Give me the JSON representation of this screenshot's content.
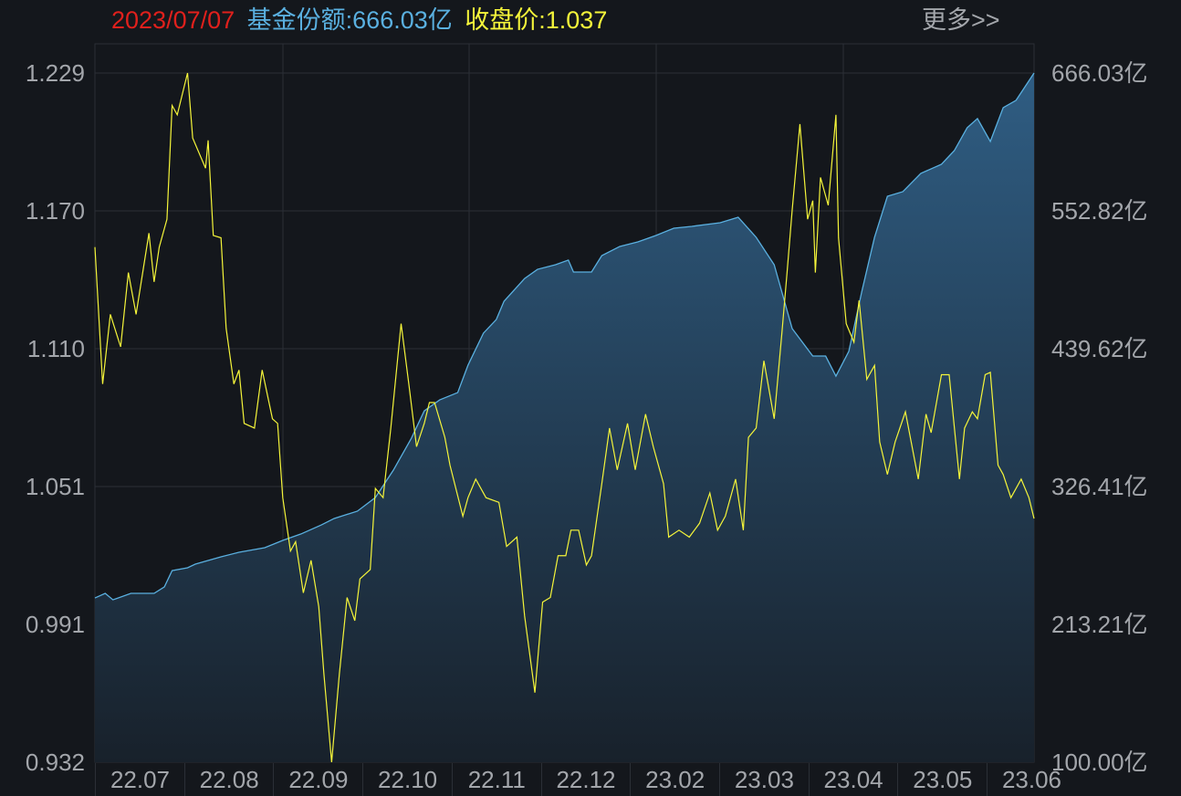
{
  "header": {
    "date": "2023/07/07",
    "fund_size_label": "基金份额:666.03亿",
    "close_label": "收盘价:1.037",
    "more_label": "更多>>"
  },
  "colors": {
    "background": "#14171c",
    "date": "#e0201c",
    "fund_size": "#5ab0e0",
    "price": "#f5f53a",
    "grid": "#2b2f36",
    "axis_text": "#a3a6ab"
  },
  "chart_data": {
    "type": "line",
    "x_range": [
      "2022-07-07",
      "2023-07-07"
    ],
    "x_ticks": [
      "22.07",
      "22.08",
      "22.09",
      "22.10",
      "22.11",
      "22.12",
      "23.02",
      "23.03",
      "23.04",
      "23.05",
      "23.06"
    ],
    "y_left": {
      "ticks": [
        "1.229",
        "1.170",
        "1.110",
        "1.051",
        "0.991",
        "0.932"
      ],
      "ylim": [
        0.932,
        1.229
      ]
    },
    "y_right": {
      "ticks": [
        "666.03亿",
        "552.82亿",
        "439.62亿",
        "326.41亿",
        "213.21亿",
        "100.00亿"
      ],
      "ylim": [
        100.0,
        666.03
      ],
      "unit": "亿"
    },
    "grid": true,
    "series": [
      {
        "name": "收盘价",
        "axis": "left",
        "style": "line",
        "points": [
          [
            "2022-07-07",
            1.154
          ],
          [
            "2022-07-10",
            1.095
          ],
          [
            "2022-07-13",
            1.125
          ],
          [
            "2022-07-17",
            1.111
          ],
          [
            "2022-07-20",
            1.143
          ],
          [
            "2022-07-23",
            1.125
          ],
          [
            "2022-07-28",
            1.16
          ],
          [
            "2022-07-30",
            1.139
          ],
          [
            "2022-08-01",
            1.154
          ],
          [
            "2022-08-04",
            1.166
          ],
          [
            "2022-08-06",
            1.215
          ],
          [
            "2022-08-08",
            1.211
          ],
          [
            "2022-08-12",
            1.229
          ],
          [
            "2022-08-14",
            1.201
          ],
          [
            "2022-08-19",
            1.188
          ],
          [
            "2022-08-20",
            1.2
          ],
          [
            "2022-08-22",
            1.159
          ],
          [
            "2022-08-25",
            1.158
          ],
          [
            "2022-08-27",
            1.119
          ],
          [
            "2022-08-30",
            1.095
          ],
          [
            "2022-09-01",
            1.101
          ],
          [
            "2022-09-03",
            1.078
          ],
          [
            "2022-09-07",
            1.076
          ],
          [
            "2022-09-10",
            1.101
          ],
          [
            "2022-09-14",
            1.08
          ],
          [
            "2022-09-16",
            1.078
          ],
          [
            "2022-09-18",
            1.046
          ],
          [
            "2022-09-21",
            1.023
          ],
          [
            "2022-09-23",
            1.027
          ],
          [
            "2022-09-26",
            1.005
          ],
          [
            "2022-09-29",
            1.019
          ],
          [
            "2022-10-02",
            0.999
          ],
          [
            "2022-10-04",
            0.97
          ],
          [
            "2022-10-07",
            0.932
          ],
          [
            "2022-10-10",
            0.97
          ],
          [
            "2022-10-13",
            1.003
          ],
          [
            "2022-10-16",
            0.993
          ],
          [
            "2022-10-18",
            1.011
          ],
          [
            "2022-10-22",
            1.015
          ],
          [
            "2022-10-24",
            1.05
          ],
          [
            "2022-10-27",
            1.046
          ],
          [
            "2022-10-30",
            1.076
          ],
          [
            "2022-11-03",
            1.121
          ],
          [
            "2022-11-06",
            1.095
          ],
          [
            "2022-11-09",
            1.068
          ],
          [
            "2022-11-12",
            1.078
          ],
          [
            "2022-11-14",
            1.087
          ],
          [
            "2022-11-16",
            1.087
          ],
          [
            "2022-11-20",
            1.072
          ],
          [
            "2022-11-22",
            1.06
          ],
          [
            "2022-11-27",
            1.038
          ],
          [
            "2022-11-29",
            1.046
          ],
          [
            "2022-12-02",
            1.054
          ],
          [
            "2022-12-06",
            1.046
          ],
          [
            "2022-12-11",
            1.044
          ],
          [
            "2022-12-14",
            1.025
          ],
          [
            "2022-12-18",
            1.029
          ],
          [
            "2022-12-21",
            0.995
          ],
          [
            "2022-12-25",
            0.962
          ],
          [
            "2022-12-28",
            1.001
          ],
          [
            "2022-12-31",
            1.003
          ],
          [
            "2023-01-03",
            1.021
          ],
          [
            "2023-01-06",
            1.021
          ],
          [
            "2023-01-08",
            1.032
          ],
          [
            "2023-01-11",
            1.032
          ],
          [
            "2023-01-14",
            1.017
          ],
          [
            "2023-01-16",
            1.021
          ],
          [
            "2023-01-20",
            1.052
          ],
          [
            "2023-01-23",
            1.076
          ],
          [
            "2023-01-26",
            1.058
          ],
          [
            "2023-01-30",
            1.078
          ],
          [
            "2023-02-02",
            1.058
          ],
          [
            "2023-02-06",
            1.082
          ],
          [
            "2023-02-09",
            1.068
          ],
          [
            "2023-02-13",
            1.052
          ],
          [
            "2023-02-15",
            1.029
          ],
          [
            "2023-02-19",
            1.032
          ],
          [
            "2023-02-23",
            1.029
          ],
          [
            "2023-02-27",
            1.035
          ],
          [
            "2023-03-03",
            1.048
          ],
          [
            "2023-03-06",
            1.032
          ],
          [
            "2023-03-09",
            1.038
          ],
          [
            "2023-03-13",
            1.054
          ],
          [
            "2023-03-16",
            1.032
          ],
          [
            "2023-03-18",
            1.072
          ],
          [
            "2023-03-21",
            1.076
          ],
          [
            "2023-03-24",
            1.105
          ],
          [
            "2023-03-28",
            1.08
          ],
          [
            "2023-03-31",
            1.117
          ],
          [
            "2023-04-02",
            1.143
          ],
          [
            "2023-04-04",
            1.17
          ],
          [
            "2023-04-07",
            1.207
          ],
          [
            "2023-04-10",
            1.166
          ],
          [
            "2023-04-12",
            1.174
          ],
          [
            "2023-04-13",
            1.143
          ],
          [
            "2023-04-15",
            1.184
          ],
          [
            "2023-04-18",
            1.172
          ],
          [
            "2023-04-21",
            1.211
          ],
          [
            "2023-04-22",
            1.158
          ],
          [
            "2023-04-25",
            1.121
          ],
          [
            "2023-04-28",
            1.113
          ],
          [
            "2023-04-30",
            1.131
          ],
          [
            "2023-05-03",
            1.097
          ],
          [
            "2023-05-06",
            1.103
          ],
          [
            "2023-05-08",
            1.07
          ],
          [
            "2023-05-11",
            1.056
          ],
          [
            "2023-05-14",
            1.07
          ],
          [
            "2023-05-18",
            1.083
          ],
          [
            "2023-05-23",
            1.054
          ],
          [
            "2023-05-26",
            1.082
          ],
          [
            "2023-05-28",
            1.074
          ],
          [
            "2023-06-01",
            1.099
          ],
          [
            "2023-06-04",
            1.099
          ],
          [
            "2023-06-08",
            1.054
          ],
          [
            "2023-06-10",
            1.076
          ],
          [
            "2023-06-13",
            1.083
          ],
          [
            "2023-06-15",
            1.08
          ],
          [
            "2023-06-18",
            1.099
          ],
          [
            "2023-06-20",
            1.1
          ],
          [
            "2023-06-23",
            1.06
          ],
          [
            "2023-06-25",
            1.056
          ],
          [
            "2023-06-28",
            1.046
          ],
          [
            "2023-07-02",
            1.054
          ],
          [
            "2023-07-05",
            1.046
          ],
          [
            "2023-07-07",
            1.037
          ]
        ]
      },
      {
        "name": "基金份额",
        "axis": "right",
        "style": "area",
        "points": [
          [
            "2022-07-07",
            234.9
          ],
          [
            "2022-07-11",
            238.7
          ],
          [
            "2022-07-14",
            233.4
          ],
          [
            "2022-07-21",
            238.7
          ],
          [
            "2022-07-30",
            238.7
          ],
          [
            "2022-08-03",
            244.0
          ],
          [
            "2022-08-06",
            257.4
          ],
          [
            "2022-08-12",
            259.7
          ],
          [
            "2022-08-15",
            262.7
          ],
          [
            "2022-08-25",
            268.7
          ],
          [
            "2022-09-01",
            272.4
          ],
          [
            "2022-09-11",
            276.2
          ],
          [
            "2022-09-18",
            282.2
          ],
          [
            "2022-09-25",
            287.4
          ],
          [
            "2022-10-03",
            294.9
          ],
          [
            "2022-10-08",
            300.2
          ],
          [
            "2022-10-17",
            306.2
          ],
          [
            "2022-10-24",
            317.4
          ],
          [
            "2022-10-31",
            339.9
          ],
          [
            "2022-11-07",
            366.1
          ],
          [
            "2022-11-12",
            388.6
          ],
          [
            "2022-11-18",
            397.6
          ],
          [
            "2022-11-25",
            403.6
          ],
          [
            "2022-11-29",
            426.1
          ],
          [
            "2022-12-05",
            452.4
          ],
          [
            "2022-12-10",
            463.6
          ],
          [
            "2022-12-13",
            478.6
          ],
          [
            "2022-12-21",
            497.3
          ],
          [
            "2022-12-26",
            504.8
          ],
          [
            "2023-01-02",
            508.6
          ],
          [
            "2023-01-07",
            512.4
          ],
          [
            "2023-01-09",
            502.6
          ],
          [
            "2023-01-16",
            502.6
          ],
          [
            "2023-01-20",
            516.1
          ],
          [
            "2023-01-27",
            523.6
          ],
          [
            "2023-02-03",
            527.3
          ],
          [
            "2023-02-10",
            532.6
          ],
          [
            "2023-02-17",
            538.6
          ],
          [
            "2023-02-24",
            540.1
          ],
          [
            "2023-03-07",
            543.1
          ],
          [
            "2023-03-14",
            547.6
          ],
          [
            "2023-03-21",
            531.1
          ],
          [
            "2023-03-28",
            508.6
          ],
          [
            "2023-04-04",
            456.1
          ],
          [
            "2023-04-12",
            433.6
          ],
          [
            "2023-04-17",
            433.6
          ],
          [
            "2023-04-21",
            417.1
          ],
          [
            "2023-04-26",
            437.4
          ],
          [
            "2023-05-01",
            486.1
          ],
          [
            "2023-05-06",
            531.1
          ],
          [
            "2023-05-11",
            564.8
          ],
          [
            "2023-05-17",
            568.6
          ],
          [
            "2023-05-24",
            583.6
          ],
          [
            "2023-06-01",
            591.1
          ],
          [
            "2023-06-06",
            602.3
          ],
          [
            "2023-06-11",
            621.1
          ],
          [
            "2023-06-15",
            628.6
          ],
          [
            "2023-06-20",
            609.8
          ],
          [
            "2023-06-25",
            637.6
          ],
          [
            "2023-06-30",
            643.6
          ],
          [
            "2023-07-07",
            666.03
          ]
        ]
      }
    ]
  }
}
